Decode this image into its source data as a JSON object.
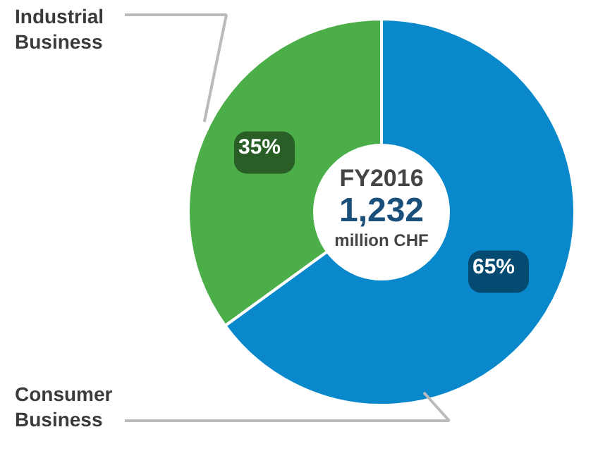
{
  "chart_data": {
    "type": "donut",
    "categories": [
      "Consumer Business",
      "Industrial Business"
    ],
    "values": [
      65,
      35
    ],
    "colors": [
      "#0a88cc",
      "#4cae48"
    ],
    "value_labels": [
      "65%",
      "35%"
    ],
    "annotations": [
      "FY2016",
      "1,232",
      "million CHF"
    ]
  }
}
